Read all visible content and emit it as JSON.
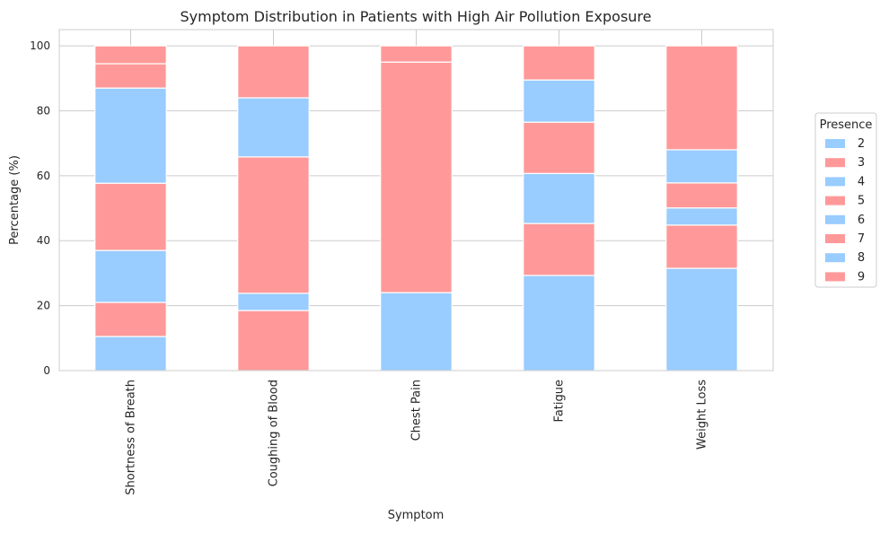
{
  "chart_data": {
    "type": "bar",
    "stacked": true,
    "title": "Symptom Distribution in Patients with High Air Pollution Exposure",
    "xlabel": "Symptom",
    "ylabel": "Percentage (%)",
    "ylim": [
      0,
      105
    ],
    "yticks": [
      0,
      20,
      40,
      60,
      80,
      100
    ],
    "grid": true,
    "legend_title": "Presence",
    "legend_position": "right",
    "categories": [
      "Shortness of Breath",
      "Coughing of Blood",
      "Chest Pain",
      "Fatigue",
      "Weight Loss"
    ],
    "colors": {
      "blue": "#99ccff",
      "red": "#ff9999",
      "grid": "#cccccc",
      "axes": "#cccccc"
    },
    "series": [
      {
        "name": "2",
        "color": "#99ccff",
        "values": [
          10.5,
          0,
          24.0,
          29.3,
          31.5
        ]
      },
      {
        "name": "3",
        "color": "#ff9999",
        "values": [
          10.5,
          18.5,
          71.0,
          16.0,
          13.3
        ]
      },
      {
        "name": "4",
        "color": "#99ccff",
        "values": [
          16.0,
          5.3,
          0,
          15.4,
          5.3
        ]
      },
      {
        "name": "5",
        "color": "#ff9999",
        "values": [
          20.7,
          42.0,
          0,
          15.8,
          7.7
        ]
      },
      {
        "name": "6",
        "color": "#99ccff",
        "values": [
          29.3,
          18.2,
          0,
          13.0,
          10.2
        ]
      },
      {
        "name": "7",
        "color": "#ff9999",
        "values": [
          7.5,
          16.0,
          5.0,
          10.5,
          32.0
        ]
      },
      {
        "name": "8",
        "color": "#99ccff",
        "values": [
          0,
          0,
          0,
          0,
          0
        ]
      },
      {
        "name": "9",
        "color": "#ff9999",
        "values": [
          5.5,
          0,
          0,
          0,
          0
        ]
      }
    ]
  }
}
